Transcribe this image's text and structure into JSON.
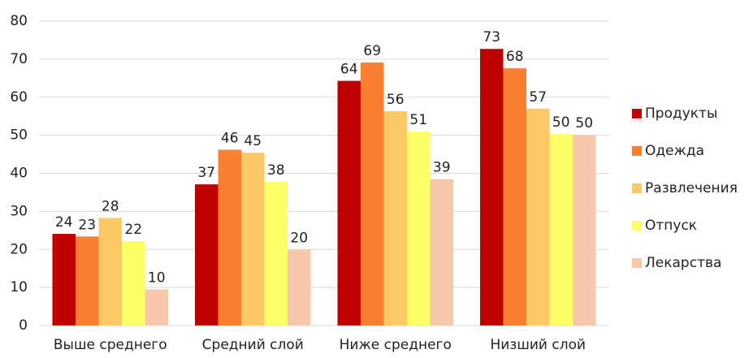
{
  "chart_data": {
    "type": "bar",
    "categories": [
      "Выше среднего",
      "Средний слой",
      "Ниже среднего",
      "Низший слой"
    ],
    "series": [
      {
        "name": "Продукты",
        "color": "#c00000",
        "values": [
          24.1,
          37.1,
          64.3,
          72.7
        ],
        "value_labels": [
          "24",
          "37",
          "64",
          "73"
        ]
      },
      {
        "name": "Одежда",
        "color": "#fa7f30",
        "values": [
          23.4,
          46.2,
          69.1,
          67.6
        ],
        "value_labels": [
          "23",
          "46",
          "69",
          "68"
        ]
      },
      {
        "name": "Развлечения",
        "color": "#fdc866",
        "values": [
          28.3,
          45.4,
          56.3,
          57.0
        ],
        "value_labels": [
          "28",
          "45",
          "56",
          "57"
        ]
      },
      {
        "name": "Отпуск",
        "color": "#ffff66",
        "values": [
          22.2,
          37.8,
          51.0,
          50.4
        ],
        "value_labels": [
          "22",
          "38",
          "51",
          "50"
        ]
      },
      {
        "name": "Лекарства",
        "color": "#f8c8aa",
        "values": [
          9.5,
          19.9,
          38.5,
          50.1
        ],
        "value_labels": [
          "10",
          "20",
          "39",
          "50"
        ]
      }
    ],
    "ylim": [
      0,
      80
    ],
    "yticks": [
      0,
      10,
      20,
      30,
      40,
      50,
      60,
      70,
      80
    ],
    "grid": true,
    "legend": "right"
  }
}
